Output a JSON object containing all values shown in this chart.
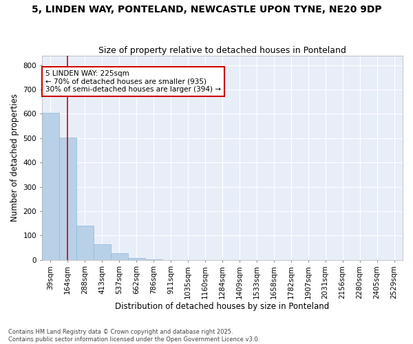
{
  "title": "5, LINDEN WAY, PONTELAND, NEWCASTLE UPON TYNE, NE20 9DP",
  "subtitle": "Size of property relative to detached houses in Ponteland",
  "xlabel": "Distribution of detached houses by size in Ponteland",
  "ylabel": "Number of detached properties",
  "categories": [
    "39sqm",
    "164sqm",
    "288sqm",
    "413sqm",
    "537sqm",
    "662sqm",
    "786sqm",
    "911sqm",
    "1035sqm",
    "1160sqm",
    "1284sqm",
    "1409sqm",
    "1533sqm",
    "1658sqm",
    "1782sqm",
    "1907sqm",
    "2031sqm",
    "2156sqm",
    "2280sqm",
    "2405sqm",
    "2529sqm"
  ],
  "values": [
    605,
    503,
    140,
    63,
    28,
    8,
    1,
    0,
    0,
    0,
    0,
    0,
    0,
    0,
    0,
    0,
    0,
    0,
    0,
    0,
    0
  ],
  "bar_color": "#b8d0e8",
  "bar_edge_color": "#90b8d8",
  "vline_x_pos": 1.5,
  "vline_color": "#cc0000",
  "annotation_text": "5 LINDEN WAY: 225sqm\n← 70% of detached houses are smaller (935)\n30% of semi-detached houses are larger (394) →",
  "annotation_box_color": "#ffffff",
  "annotation_box_edge": "#cc0000",
  "ylim": [
    0,
    840
  ],
  "yticks": [
    0,
    100,
    200,
    300,
    400,
    500,
    600,
    700,
    800
  ],
  "fig_background": "#ffffff",
  "plot_background": "#e8eef8",
  "grid_color": "#ffffff",
  "title_fontsize": 10,
  "subtitle_fontsize": 9,
  "axis_label_fontsize": 8.5,
  "tick_fontsize": 7.5,
  "footer_line1": "Contains HM Land Registry data © Crown copyright and database right 2025.",
  "footer_line2": "Contains public sector information licensed under the Open Government Licence v3.0."
}
